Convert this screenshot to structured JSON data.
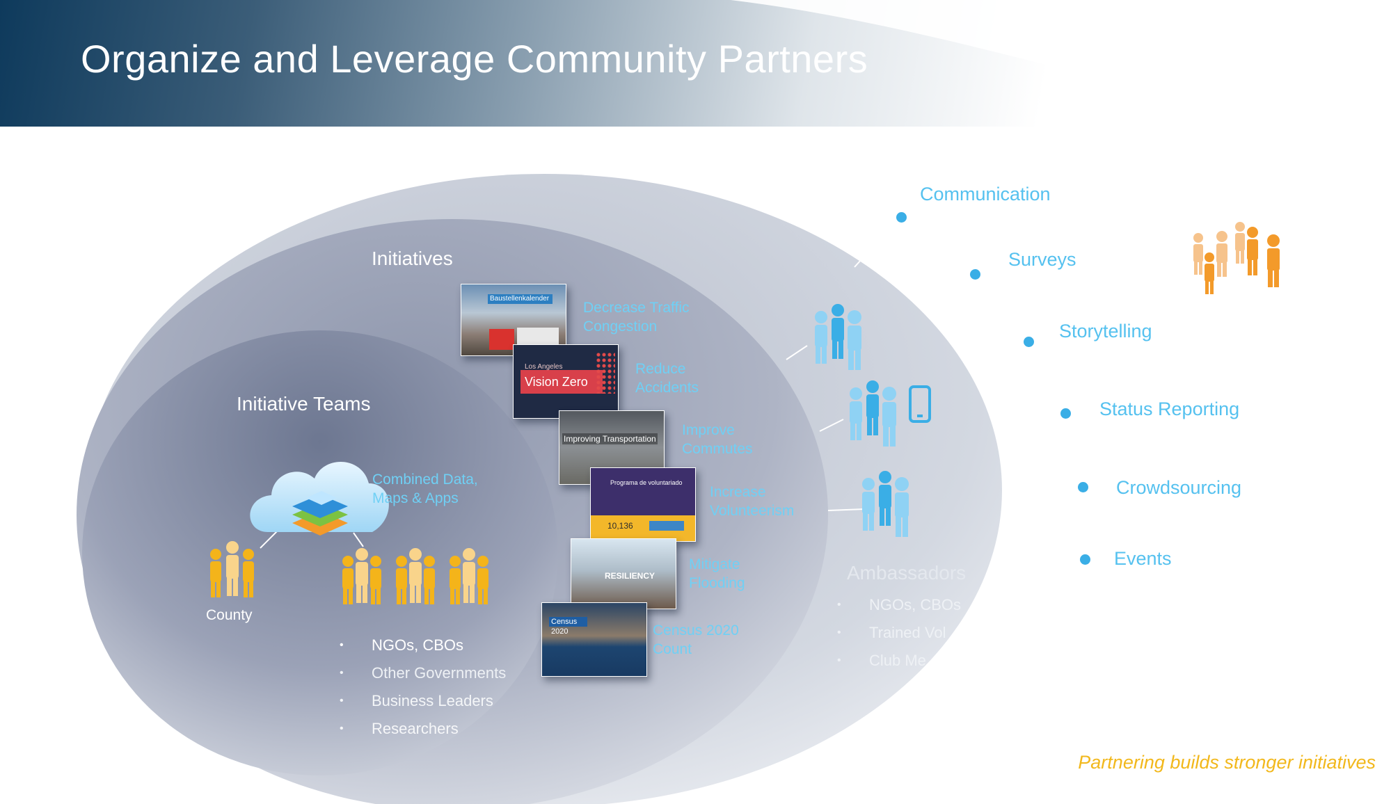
{
  "title": "Organize and Leverage Community Partners",
  "sections": {
    "initiatives": "Initiatives",
    "initiative_teams": "Initiative Teams",
    "ambassadors": "Ambassadors"
  },
  "combined_label": "Combined Data, Maps & Apps",
  "county_label": "County",
  "initiatives": [
    {
      "label": "Decrease Traffic Congestion",
      "thumb_text": "Baustellenkalender"
    },
    {
      "label": "Reduce Accidents",
      "thumb_text": "Vision Zero",
      "thumb_sub": "Los Angeles"
    },
    {
      "label": "Improve Commutes",
      "thumb_text": "Improving Transportation"
    },
    {
      "label": "Increase Volunteerism",
      "thumb_text": "Programa de voluntariado",
      "thumb_value": "10,136"
    },
    {
      "label": "Mitigate Flooding",
      "thumb_text": "RESILIENCY"
    },
    {
      "label": "Census 2020 Count",
      "thumb_text": "Census 2020"
    }
  ],
  "team_partners": [
    "NGOs, CBOs",
    "Other Governments",
    "Business Leaders",
    "Researchers"
  ],
  "ambassador_partners": [
    "NGOs, CBOs",
    "Trained Vol",
    "Club Me"
  ],
  "communication_channels": [
    "Communication",
    "Surveys",
    "Storytelling",
    "Status Reporting",
    "Crowdsourcing",
    "Events"
  ],
  "tagline": "Partnering builds stronger initiatives",
  "colors": {
    "banner_dark": "#0e3a5c",
    "accent_blue": "#5cc5f2",
    "people_gold": "#f4b41a",
    "people_orange": "#f39a2a",
    "tagline": "#f2b81c"
  }
}
